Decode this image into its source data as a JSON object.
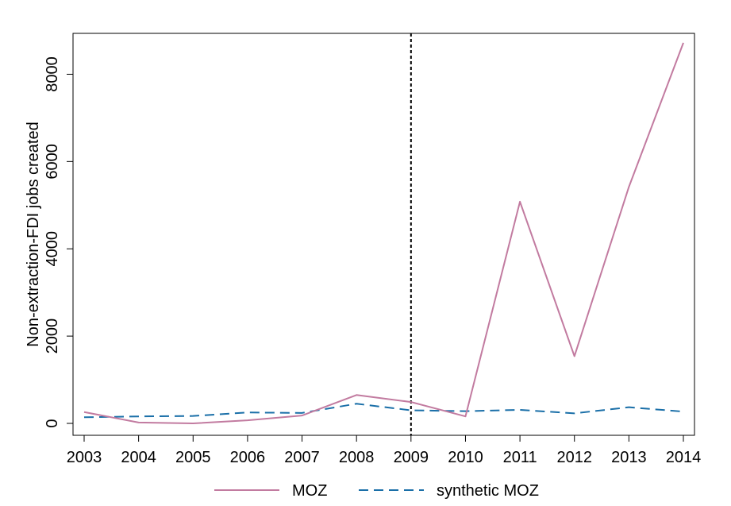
{
  "chart_data": {
    "type": "line",
    "title": "",
    "xlabel": "",
    "ylabel": "Non-extraction-FDI jobs created",
    "x": [
      "2003",
      "2004",
      "2005",
      "2006",
      "2007",
      "2008",
      "2009",
      "2010",
      "2011",
      "2012",
      "2013",
      "2014"
    ],
    "xlim": [
      2003,
      2014
    ],
    "ylim": [
      0,
      8700
    ],
    "yticks": [
      0,
      2000,
      4000,
      6000,
      8000
    ],
    "yticklabels": [
      "0",
      "2000",
      "4000",
      "6000",
      "8000"
    ],
    "reference_line": {
      "x": 2009,
      "style": "dotted",
      "color": "#000000"
    },
    "grid": false,
    "legend_position": "bottom",
    "series": [
      {
        "name": "MOZ",
        "style": "solid",
        "color": "#c27ba0",
        "values": [
          260,
          20,
          0,
          70,
          180,
          650,
          490,
          160,
          5080,
          1540,
          5420,
          8720
        ]
      },
      {
        "name": "synthetic MOZ",
        "style": "dashed",
        "color": "#1a6fa8",
        "values": [
          140,
          160,
          170,
          250,
          240,
          450,
          300,
          280,
          310,
          230,
          370,
          270
        ]
      }
    ]
  }
}
